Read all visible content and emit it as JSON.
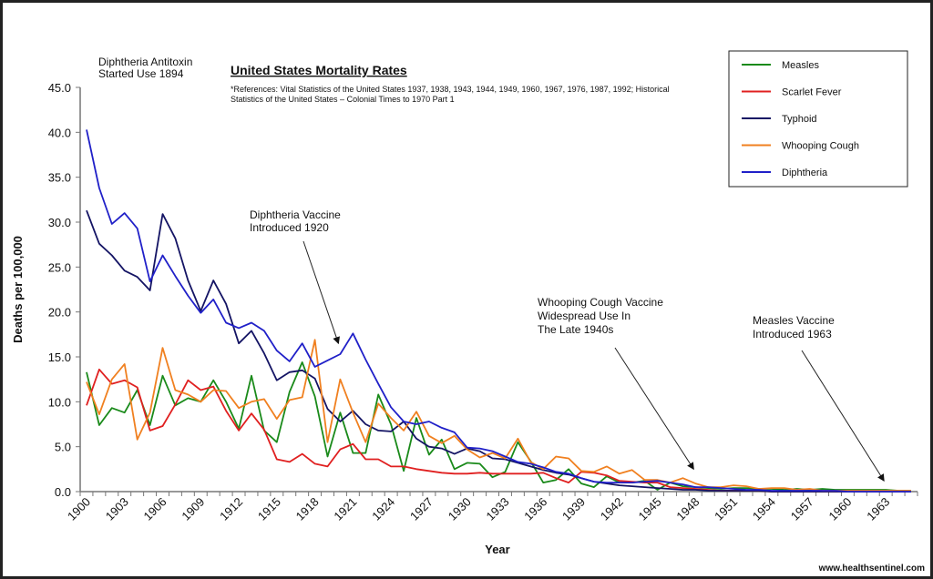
{
  "chart_data": {
    "type": "line",
    "title": "United States Mortality Rates",
    "subtitle": [
      "*References: Vital Statistics of the United States 1937, 1938, 1943, 1944, 1949, 1960, 1967, 1976, 1987, 1992; Historical",
      "Statistics of the United States – Colonial Times to 1970 Part 1"
    ],
    "xlabel": "Year",
    "ylabel": "Deaths per 100,000",
    "ylim": [
      0,
      45
    ],
    "yticks": [
      "0.0",
      "5.0",
      "10.0",
      "15.0",
      "20.0",
      "25.0",
      "30.0",
      "35.0",
      "40.0",
      "45.0"
    ],
    "x_start": 1900,
    "x_end": 1965,
    "xtick_labels": [
      "1900",
      "1903",
      "1906",
      "1909",
      "1912",
      "1915",
      "1918",
      "1921",
      "1924",
      "1927",
      "1930",
      "1933",
      "1936",
      "1939",
      "1942",
      "1945",
      "1948",
      "1951",
      "1954",
      "1957",
      "1960",
      "1963"
    ],
    "grid": false,
    "legend_position": "top-right",
    "series": [
      {
        "name": "Measles",
        "color": "#1a8a1a",
        "values": [
          13.3,
          7.4,
          9.3,
          8.8,
          11.3,
          7.4,
          12.9,
          9.6,
          10.4,
          10.0,
          12.4,
          10.0,
          7.0,
          12.9,
          6.8,
          5.5,
          11.1,
          14.4,
          10.6,
          3.9,
          8.8,
          4.3,
          4.3,
          10.8,
          7.5,
          2.3,
          8.2,
          4.1,
          5.8,
          2.5,
          3.2,
          3.1,
          1.6,
          2.2,
          5.5,
          3.4,
          1.0,
          1.3,
          2.5,
          0.9,
          0.5,
          1.7,
          1.0,
          1.0,
          1.2,
          0.2,
          1.0,
          0.6,
          0.5,
          0.4,
          0.3,
          0.4,
          0.4,
          0.3,
          0.3,
          0.2,
          0.3,
          0.2,
          0.3,
          0.2,
          0.2,
          0.2,
          0.2,
          0.2,
          0.1,
          0.1
        ]
      },
      {
        "name": "Scarlet Fever",
        "color": "#e02020",
        "values": [
          9.6,
          13.6,
          12.0,
          12.4,
          11.6,
          6.8,
          7.3,
          9.7,
          12.4,
          11.3,
          11.7,
          9.0,
          6.8,
          8.7,
          6.9,
          3.6,
          3.3,
          4.2,
          3.1,
          2.8,
          4.7,
          5.3,
          3.6,
          3.6,
          2.8,
          2.8,
          2.5,
          2.3,
          2.1,
          2.0,
          2.0,
          2.1,
          2.0,
          2.0,
          2.0,
          2.0,
          2.1,
          1.5,
          1.0,
          2.2,
          2.1,
          1.8,
          1.2,
          1.1,
          1.0,
          1.0,
          0.5,
          0.4,
          0.3,
          0.2,
          0.1,
          0.1,
          0.1,
          0.1,
          0,
          0,
          0,
          0,
          0,
          0,
          0,
          0,
          0,
          0,
          0,
          0
        ]
      },
      {
        "name": "Typhoid",
        "color": "#141464",
        "values": [
          31.3,
          27.6,
          26.3,
          24.6,
          23.9,
          22.4,
          30.9,
          28.2,
          23.5,
          20.1,
          23.5,
          20.9,
          16.5,
          17.9,
          15.4,
          12.4,
          13.3,
          13.5,
          12.6,
          9.2,
          7.8,
          9.0,
          7.5,
          6.8,
          6.7,
          7.8,
          5.9,
          5.0,
          4.8,
          4.2,
          4.8,
          4.5,
          3.7,
          3.6,
          3.2,
          2.8,
          2.4,
          2.1,
          1.9,
          1.5,
          1.1,
          0.9,
          0.7,
          0.6,
          0.5,
          0.4,
          0.3,
          0.2,
          0.2,
          0.1,
          0.1,
          0.1,
          0.1,
          0.1,
          0,
          0,
          0,
          0,
          0,
          0,
          0,
          0,
          0,
          0,
          0,
          0
        ]
      },
      {
        "name": "Whooping Cough",
        "color": "#f08020",
        "values": [
          12.2,
          8.6,
          12.5,
          14.2,
          5.8,
          8.8,
          16.0,
          11.3,
          10.8,
          10.0,
          11.3,
          11.2,
          9.3,
          10.0,
          10.3,
          8.1,
          10.2,
          10.5,
          16.9,
          5.5,
          12.5,
          8.8,
          5.5,
          9.8,
          8.2,
          6.8,
          8.9,
          6.2,
          5.4,
          6.2,
          4.7,
          3.8,
          4.3,
          3.7,
          5.9,
          3.3,
          2.5,
          3.9,
          3.7,
          2.3,
          2.2,
          2.8,
          2.0,
          2.4,
          1.3,
          1.3,
          1.0,
          1.5,
          0.9,
          0.5,
          0.5,
          0.7,
          0.6,
          0.3,
          0.4,
          0.4,
          0.2,
          0.3,
          0.1,
          0.1,
          0.1,
          0.1,
          0.1,
          0.1,
          0.1,
          0.1
        ]
      },
      {
        "name": "Diphtheria",
        "color": "#2020c8",
        "values": [
          40.3,
          33.8,
          29.8,
          31.0,
          29.3,
          23.4,
          26.3,
          24.0,
          21.8,
          19.9,
          21.4,
          18.8,
          18.2,
          18.8,
          17.9,
          15.7,
          14.5,
          16.5,
          13.9,
          14.6,
          15.3,
          17.6,
          14.7,
          12.0,
          9.4,
          7.8,
          7.5,
          7.8,
          7.1,
          6.6,
          4.9,
          4.8,
          4.5,
          3.9,
          3.3,
          3.1,
          2.7,
          2.2,
          2.0,
          1.5,
          1.1,
          1.0,
          1.0,
          1.0,
          1.1,
          1.2,
          1.0,
          0.8,
          0.5,
          0.5,
          0.4,
          0.3,
          0.2,
          0.2,
          0.1,
          0.1,
          0.1,
          0.1,
          0.1,
          0.1,
          0,
          0,
          0,
          0,
          0,
          0
        ]
      }
    ],
    "annotations": [
      {
        "lines": [
          "Diphtheria Antitoxin",
          "Started Use 1894"
        ],
        "arrow_to": null
      },
      {
        "lines": [
          "Diphtheria Vaccine",
          "Introduced 1920"
        ],
        "arrow_to": {
          "year": 1920,
          "value": 16.5
        }
      },
      {
        "lines": [
          "Whooping Cough Vaccine",
          "Widespread Use In",
          "The Late 1940s"
        ],
        "arrow_to": {
          "year": 1948,
          "value": 2.5
        }
      },
      {
        "lines": [
          "Measles Vaccine",
          "Introduced 1963"
        ],
        "arrow_to": {
          "year": 1963,
          "value": 1.2
        }
      }
    ]
  },
  "watermark": "www.healthsentinel.com"
}
